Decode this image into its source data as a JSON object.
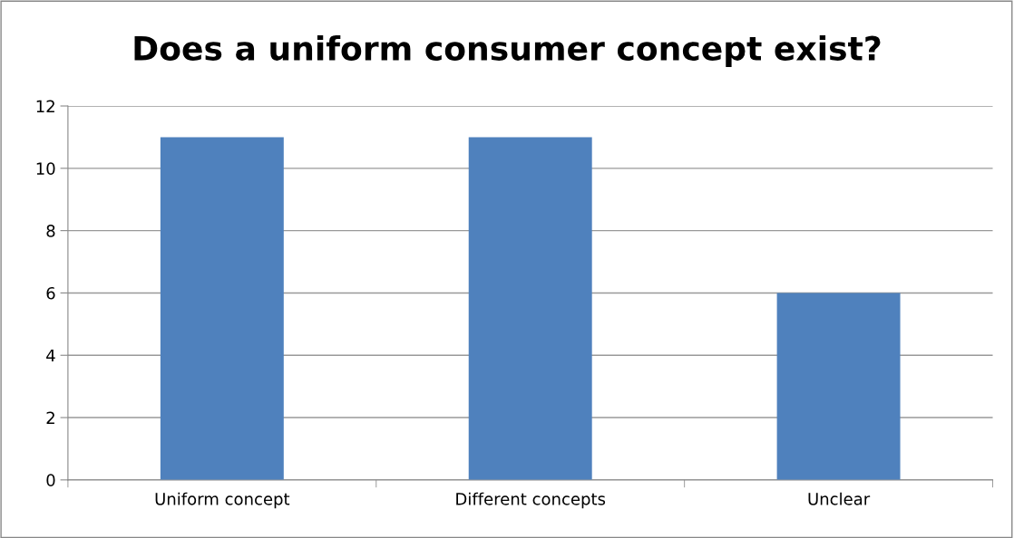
{
  "chart_data": {
    "type": "bar",
    "title": "Does a uniform consumer concept exist?",
    "categories": [
      "Uniform concept",
      "Different concepts",
      "Unclear"
    ],
    "values": [
      11,
      11,
      6
    ],
    "color": "#4f81bd",
    "ylim": [
      0,
      12
    ],
    "yticks": [
      0,
      2,
      4,
      6,
      8,
      10,
      12
    ],
    "grid": "y",
    "legend": false
  }
}
